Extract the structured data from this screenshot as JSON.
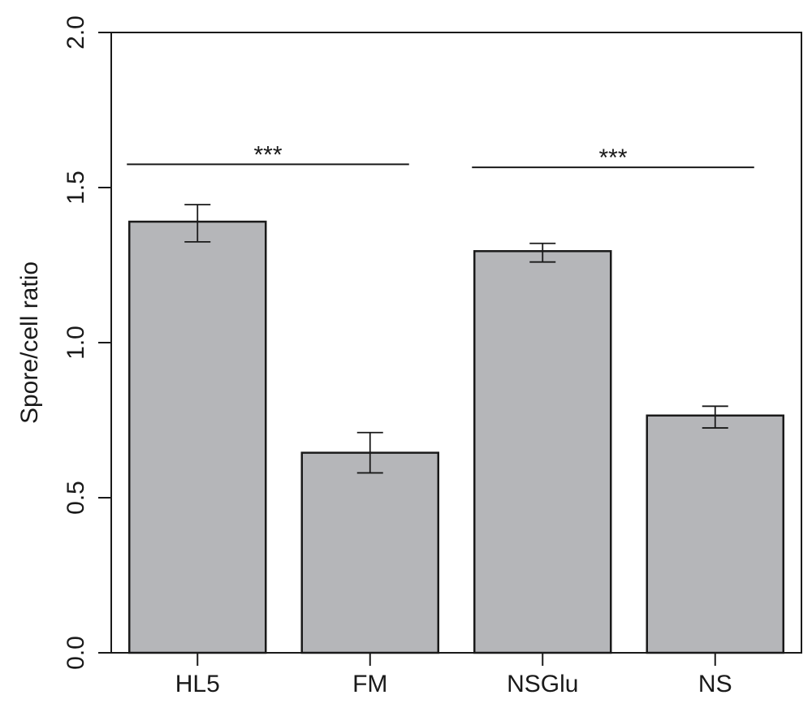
{
  "chart_data": {
    "type": "bar",
    "title": "",
    "xlabel": "",
    "ylabel": "Spore/cell ratio",
    "categories": [
      "HL5",
      "FM",
      "NSGlu",
      "NS"
    ],
    "values": [
      1.39,
      0.645,
      1.295,
      0.765
    ],
    "errors": [
      {
        "low": 1.325,
        "high": 1.445
      },
      {
        "low": 0.58,
        "high": 0.71
      },
      {
        "low": 1.26,
        "high": 1.32
      },
      {
        "low": 0.725,
        "high": 0.795
      }
    ],
    "ylim": [
      0.0,
      2.0
    ],
    "yticks": [
      0.0,
      0.5,
      1.0,
      1.5,
      2.0
    ],
    "ytick_labels": [
      "0.0",
      "0.5",
      "1.0",
      "1.5",
      "2.0"
    ],
    "bar_color": "#b5b6b9",
    "edge_color": "#1a1a1a",
    "grid": false,
    "annotations": [
      {
        "label": "***",
        "from": 0,
        "to": 1,
        "y": 1.575
      },
      {
        "label": "***",
        "from": 2,
        "to": 3,
        "y": 1.565
      }
    ]
  }
}
